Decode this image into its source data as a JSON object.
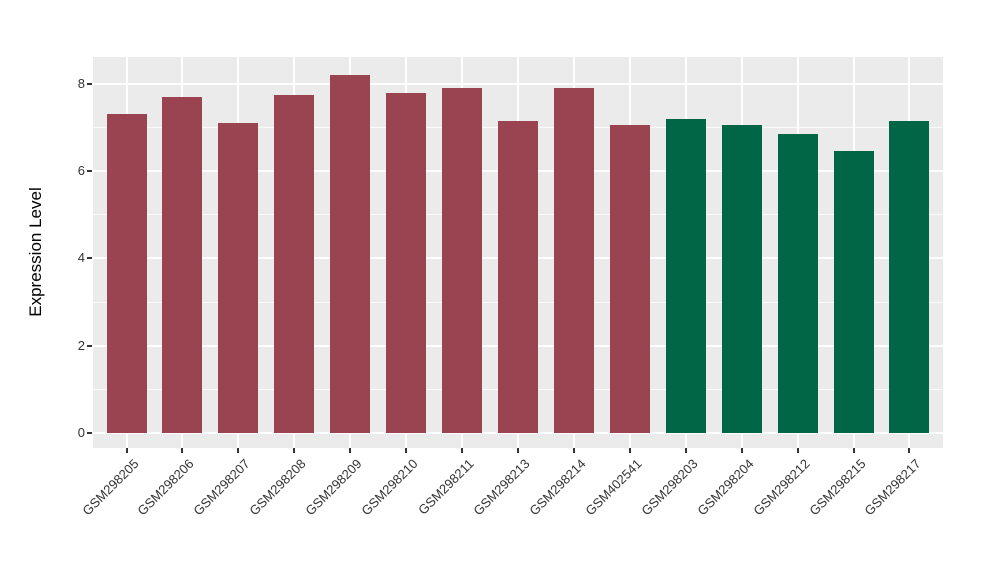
{
  "chart_data": {
    "type": "bar",
    "title": "",
    "xlabel": "",
    "ylabel": "Expression Level",
    "categories": [
      "GSM298205",
      "GSM298206",
      "GSM298207",
      "GSM298208",
      "GSM298209",
      "GSM298210",
      "GSM298211",
      "GSM298213",
      "GSM298214",
      "GSM402541",
      "GSM298203",
      "GSM298204",
      "GSM298212",
      "GSM298215",
      "GSM298217"
    ],
    "values": [
      7.3,
      7.7,
      7.1,
      7.75,
      8.2,
      7.8,
      7.9,
      7.15,
      7.9,
      7.05,
      7.2,
      7.05,
      6.85,
      6.45,
      7.15
    ],
    "groups": [
      "maroon",
      "maroon",
      "maroon",
      "maroon",
      "maroon",
      "maroon",
      "maroon",
      "maroon",
      "maroon",
      "maroon",
      "green",
      "green",
      "green",
      "green",
      "green"
    ],
    "group_colors": {
      "maroon": "#9A4351",
      "green": "#006646"
    },
    "y_ticks": [
      0,
      2,
      4,
      6,
      8
    ],
    "y_minor_ticks": [
      1,
      3,
      5,
      7
    ],
    "ylim": [
      0,
      8.6
    ],
    "x_tick_angle": 45,
    "grid": true,
    "legend": "none",
    "panel_background": "#EBEBEB",
    "gridline_color": "#FFFFFF",
    "axis_text_color": "#333333"
  }
}
